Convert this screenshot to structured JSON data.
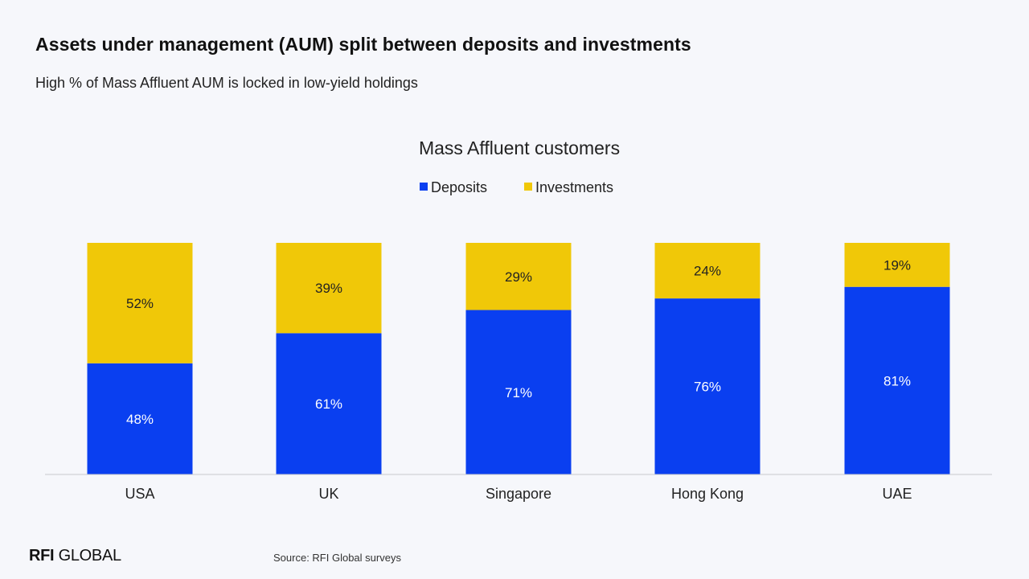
{
  "header": {
    "title": "Assets under management (AUM) split between deposits and investments",
    "subtitle": "High % of Mass Affluent AUM is locked in low-yield holdings"
  },
  "footer": {
    "logo_bold": "RFI",
    "logo_rest": "GLOBAL",
    "source": "Source: RFI Global surveys"
  },
  "colors": {
    "deposits": "#0a3ff0",
    "investments": "#f0c808",
    "background": "#f6f7fb",
    "axis": "#c8c8cc"
  },
  "chart_data": {
    "type": "bar",
    "stacked": true,
    "title": "Mass Affluent customers",
    "legend_position": "top-center",
    "grid": false,
    "ylim": [
      0,
      100
    ],
    "categories": [
      "USA",
      "UK",
      "Singapore",
      "Hong Kong",
      "UAE"
    ],
    "series": [
      {
        "name": "Deposits",
        "color": "#0a3ff0",
        "values": [
          48,
          61,
          71,
          76,
          81
        ],
        "labels": [
          "48%",
          "61%",
          "71%",
          "76%",
          "81%"
        ]
      },
      {
        "name": "Investments",
        "color": "#f0c808",
        "values": [
          52,
          39,
          29,
          24,
          19
        ],
        "labels": [
          "52%",
          "39%",
          "29%",
          "24%",
          "19%"
        ]
      }
    ]
  }
}
